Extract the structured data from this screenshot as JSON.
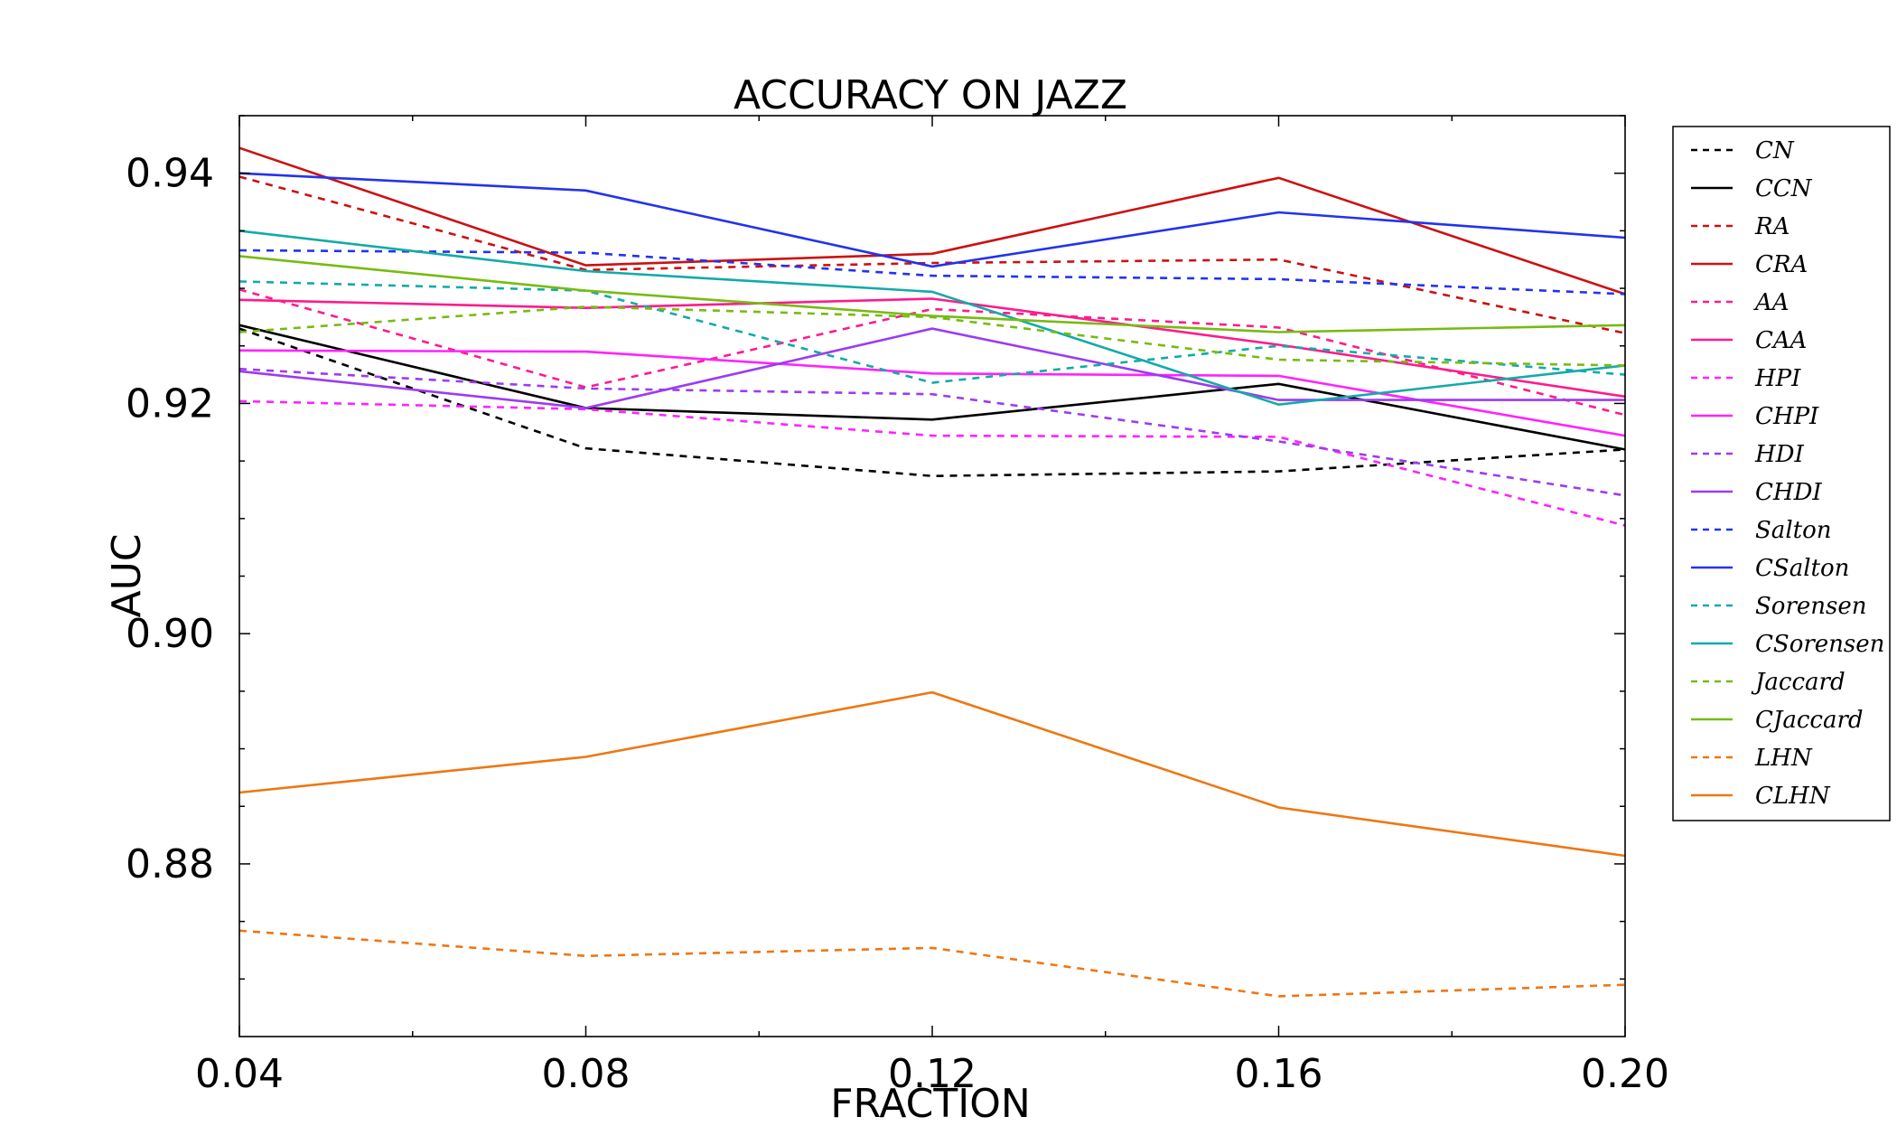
{
  "chart_data": {
    "type": "line",
    "title": "ACCURACY ON JAZZ",
    "xlabel": "FRACTION",
    "ylabel": "AUC",
    "x": [
      0.04,
      0.08,
      0.12,
      0.16,
      0.2
    ],
    "x_tick_labels": [
      "0.04",
      "0.08",
      "0.12",
      "0.16",
      "0.20"
    ],
    "y_ticks": [
      0.88,
      0.9,
      0.92,
      0.94
    ],
    "y_tick_labels": [
      "0.88",
      "0.90",
      "0.92",
      "0.94"
    ],
    "xlim": [
      0.04,
      0.2
    ],
    "ylim": [
      0.865,
      0.945
    ],
    "grid": false,
    "legend_position": "outside-right",
    "series": [
      {
        "name": "CN",
        "color": "#000000",
        "dash": true,
        "values": [
          0.9265,
          0.9161,
          0.9137,
          0.9141,
          0.916
        ]
      },
      {
        "name": "CCN",
        "color": "#000000",
        "dash": false,
        "values": [
          0.9268,
          0.9196,
          0.9186,
          0.9217,
          0.916
        ]
      },
      {
        "name": "RA",
        "color": "#cc1111",
        "dash": true,
        "values": [
          0.9397,
          0.9316,
          0.9322,
          0.9325,
          0.9261
        ]
      },
      {
        "name": "CRA",
        "color": "#cc1111",
        "dash": false,
        "values": [
          0.9422,
          0.932,
          0.933,
          0.9396,
          0.9295
        ]
      },
      {
        "name": "AA",
        "color": "#ff1a8c",
        "dash": true,
        "values": [
          0.9299,
          0.9214,
          0.9282,
          0.9266,
          0.919
        ]
      },
      {
        "name": "CAA",
        "color": "#ff1a8c",
        "dash": false,
        "values": [
          0.929,
          0.9283,
          0.9291,
          0.9251,
          0.9206
        ]
      },
      {
        "name": "HPI",
        "color": "#ff22ff",
        "dash": true,
        "values": [
          0.9202,
          0.9195,
          0.9172,
          0.9171,
          0.9094
        ]
      },
      {
        "name": "CHPI",
        "color": "#ff22ff",
        "dash": false,
        "values": [
          0.9246,
          0.9245,
          0.9226,
          0.9224,
          0.9172
        ]
      },
      {
        "name": "HDI",
        "color": "#9b3cf0",
        "dash": true,
        "values": [
          0.923,
          0.9213,
          0.9208,
          0.9167,
          0.912
        ]
      },
      {
        "name": "CHDI",
        "color": "#9b3cf0",
        "dash": false,
        "values": [
          0.9228,
          0.9196,
          0.9265,
          0.9203,
          0.9203
        ]
      },
      {
        "name": "Salton",
        "color": "#2233ee",
        "dash": true,
        "values": [
          0.9333,
          0.9331,
          0.9311,
          0.9308,
          0.9295
        ]
      },
      {
        "name": "CSalton",
        "color": "#2233ee",
        "dash": false,
        "values": [
          0.94,
          0.9385,
          0.9319,
          0.9366,
          0.9344
        ]
      },
      {
        "name": "Sorensen",
        "color": "#13aaaa",
        "dash": true,
        "values": [
          0.9306,
          0.9298,
          0.9218,
          0.925,
          0.9225
        ]
      },
      {
        "name": "CSorensen",
        "color": "#13aaaa",
        "dash": false,
        "values": [
          0.935,
          0.9315,
          0.9297,
          0.9199,
          0.9233
        ]
      },
      {
        "name": "Jaccard",
        "color": "#77bb11",
        "dash": true,
        "values": [
          0.9262,
          0.9284,
          0.9275,
          0.9238,
          0.9233
        ]
      },
      {
        "name": "CJaccard",
        "color": "#77bb11",
        "dash": false,
        "values": [
          0.9328,
          0.9298,
          0.9276,
          0.9262,
          0.9268
        ]
      },
      {
        "name": "LHN",
        "color": "#ee7711",
        "dash": true,
        "values": [
          0.8742,
          0.872,
          0.8727,
          0.8685,
          0.8695
        ]
      },
      {
        "name": "CLHN",
        "color": "#ee7711",
        "dash": false,
        "values": [
          0.8862,
          0.8893,
          0.8949,
          0.8849,
          0.8807
        ]
      }
    ]
  }
}
